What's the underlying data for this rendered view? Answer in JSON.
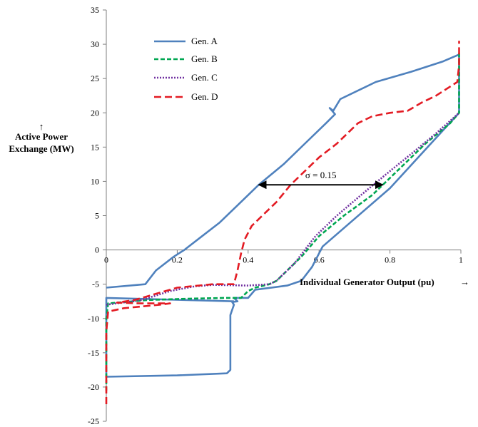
{
  "chart_data": {
    "type": "line",
    "title": "",
    "xlabel": "Individual Generator Output (pu)",
    "ylabel_line1": "Active Power",
    "ylabel_line2": "Exchange (MW)",
    "xlim": [
      0,
      1
    ],
    "ylim": [
      -25,
      35
    ],
    "x_ticks": [
      0,
      0.2,
      0.4,
      0.6,
      0.8,
      1
    ],
    "x_tick_labels": [
      "0",
      "0.2",
      "0.4",
      "0.6",
      "0.8",
      "1"
    ],
    "y_ticks": [
      -25,
      -20,
      -15,
      -10,
      -5,
      0,
      5,
      10,
      15,
      20,
      25,
      30,
      35
    ],
    "y_tick_labels": [
      "-25",
      "-20",
      "-15",
      "-10",
      "-5",
      "0",
      "5",
      "10",
      "15",
      "20",
      "25",
      "30",
      "35"
    ],
    "grid": false,
    "legend_position": "top-left",
    "arrow_symbol": "→",
    "ylabel_arrow_symbol": "↑",
    "annotation": {
      "text": "σ = 0.15",
      "arrow_from": [
        0.43,
        9.5
      ],
      "arrow_to": [
        0.78,
        9.5
      ]
    },
    "series": [
      {
        "name": "Gen. A",
        "color": "#4F81BD",
        "dash": "solid",
        "points": [
          [
            0,
            -5.5
          ],
          [
            0.11,
            -5.0
          ],
          [
            0.14,
            -3.0
          ],
          [
            0.19,
            -1.0
          ],
          [
            0.22,
            0.0
          ],
          [
            0.27,
            2.0
          ],
          [
            0.32,
            4.0
          ],
          [
            0.37,
            6.5
          ],
          [
            0.43,
            9.5
          ],
          [
            0.5,
            12.5
          ],
          [
            0.56,
            15.5
          ],
          [
            0.62,
            18.5
          ],
          [
            0.645,
            19.8
          ],
          [
            0.63,
            20.7
          ],
          [
            0.64,
            20.3
          ],
          [
            0.66,
            22.0
          ],
          [
            0.76,
            24.5
          ],
          [
            0.86,
            26.0
          ],
          [
            0.95,
            27.5
          ],
          [
            0.995,
            28.5
          ],
          [
            0.995,
            26.0
          ],
          [
            0.995,
            22.0
          ],
          [
            0.995,
            20.0
          ],
          [
            0.8,
            9.0
          ],
          [
            0.61,
            0.5
          ],
          [
            0.58,
            -2.5
          ],
          [
            0.55,
            -4.5
          ],
          [
            0.51,
            -5.2
          ],
          [
            0.42,
            -5.8
          ],
          [
            0.4,
            -7.0
          ],
          [
            0.36,
            -7.0
          ],
          [
            0.37,
            -7.5
          ],
          [
            0.355,
            -7.6
          ],
          [
            0.36,
            -8.0
          ],
          [
            0.35,
            -9.5
          ],
          [
            0.35,
            -17.5
          ],
          [
            0.34,
            -18.0
          ],
          [
            0.2,
            -18.3
          ],
          [
            0.0,
            -18.5
          ],
          [
            0.0,
            -13.0
          ],
          [
            0.0,
            -9.5
          ],
          [
            0.0,
            -7.5
          ],
          [
            0.0,
            -7.0
          ],
          [
            0.36,
            -7.5
          ]
        ]
      },
      {
        "name": "Gen. B",
        "color": "#00A651",
        "dash": "6,3",
        "points": [
          [
            0,
            -20.5
          ],
          [
            0,
            -10.0
          ],
          [
            0.005,
            -7.8
          ],
          [
            0.12,
            -7.3
          ],
          [
            0.24,
            -7.1
          ],
          [
            0.34,
            -7.0
          ],
          [
            0.38,
            -7.0
          ],
          [
            0.4,
            -6.0
          ],
          [
            0.42,
            -5.5
          ],
          [
            0.46,
            -5.0
          ],
          [
            0.48,
            -4.5
          ],
          [
            0.55,
            -1.0
          ],
          [
            0.6,
            2.0
          ],
          [
            0.67,
            5.0
          ],
          [
            0.75,
            8.0
          ],
          [
            0.84,
            12.5
          ],
          [
            0.9,
            15.5
          ],
          [
            0.97,
            18.5
          ],
          [
            0.995,
            20.0
          ],
          [
            0.995,
            23.0
          ],
          [
            0.995,
            26.0
          ],
          [
            0.995,
            28.0
          ],
          [
            0.995,
            29.0
          ]
        ]
      },
      {
        "name": "Gen. C",
        "color": "#7030A0",
        "dash": "2,2",
        "points": [
          [
            0,
            -8.0
          ],
          [
            0.1,
            -7.3
          ],
          [
            0.18,
            -6.0
          ],
          [
            0.25,
            -5.3
          ],
          [
            0.3,
            -5.1
          ],
          [
            0.4,
            -5.2
          ],
          [
            0.46,
            -5.0
          ],
          [
            0.48,
            -4.5
          ],
          [
            0.53,
            -2.0
          ],
          [
            0.59,
            2.0
          ],
          [
            0.65,
            5.0
          ],
          [
            0.73,
            8.5
          ],
          [
            0.8,
            11.5
          ],
          [
            0.86,
            14.0
          ],
          [
            0.93,
            17.0
          ],
          [
            0.995,
            20.0
          ]
        ]
      },
      {
        "name": "Gen. D",
        "color": "#E31B23",
        "dash": "10,5",
        "points": [
          [
            0,
            -22.5
          ],
          [
            0,
            -18.0
          ],
          [
            0,
            -12.0
          ],
          [
            0.005,
            -9.0
          ],
          [
            0.05,
            -8.5
          ],
          [
            0.15,
            -8.0
          ],
          [
            0.18,
            -7.8
          ],
          [
            0.1,
            -7.8
          ],
          [
            0.03,
            -7.7
          ],
          [
            0.08,
            -7.3
          ],
          [
            0.2,
            -5.5
          ],
          [
            0.3,
            -5.0
          ],
          [
            0.36,
            -5.0
          ],
          [
            0.37,
            -3.0
          ],
          [
            0.38,
            -0.5
          ],
          [
            0.39,
            1.5
          ],
          [
            0.41,
            3.5
          ],
          [
            0.44,
            5.0
          ],
          [
            0.48,
            7.0
          ],
          [
            0.52,
            9.5
          ],
          [
            0.56,
            11.5
          ],
          [
            0.6,
            13.5
          ],
          [
            0.65,
            15.5
          ],
          [
            0.71,
            18.5
          ],
          [
            0.75,
            19.5
          ],
          [
            0.8,
            20.0
          ],
          [
            0.85,
            20.3
          ],
          [
            0.89,
            21.5
          ],
          [
            0.93,
            22.5
          ],
          [
            0.99,
            24.5
          ],
          [
            0.995,
            27.0
          ],
          [
            0.995,
            30.5
          ]
        ]
      }
    ]
  }
}
